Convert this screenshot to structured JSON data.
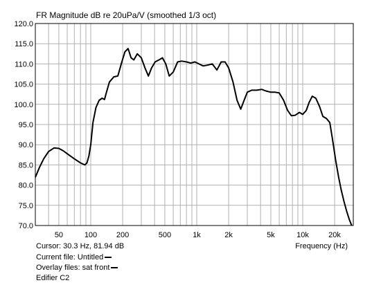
{
  "chart_data": {
    "type": "line",
    "title": "FR Magnitude dB re 20uPa/V (smoothed 1/3 oct)",
    "xlabel": "Frequency (Hz)",
    "ylabel": "",
    "x_scale": "log",
    "xlim": [
      30,
      30000
    ],
    "ylim": [
      70.0,
      120.0
    ],
    "grid": true,
    "y_ticks": [
      "120.0",
      "115.0",
      "110.0",
      "105.0",
      "100.0",
      "95.0",
      "90.0",
      "85.0",
      "80.0",
      "75.0",
      "70.0"
    ],
    "x_ticks": [
      {
        "value": 50,
        "label": "50"
      },
      {
        "value": 100,
        "label": "100"
      },
      {
        "value": 200,
        "label": "200"
      },
      {
        "value": 500,
        "label": "500"
      },
      {
        "value": 1000,
        "label": "1k"
      },
      {
        "value": 2000,
        "label": "2k"
      },
      {
        "value": 5000,
        "label": "5k"
      },
      {
        "value": 10000,
        "label": "10k"
      },
      {
        "value": 20000,
        "label": "20k"
      }
    ],
    "series": [
      {
        "x": [
          30,
          33,
          36,
          40,
          45,
          50,
          55,
          62,
          70,
          80,
          88,
          92,
          96,
          100,
          105,
          112,
          120,
          128,
          135,
          140,
          150,
          165,
          180,
          195,
          210,
          225,
          240,
          255,
          275,
          300,
          325,
          350,
          375,
          405,
          440,
          475,
          510,
          550,
          600,
          660,
          720,
          800,
          880,
          960,
          1050,
          1150,
          1260,
          1400,
          1550,
          1700,
          1850,
          2000,
          2200,
          2400,
          2600,
          2800,
          3000,
          3300,
          3700,
          4100,
          4500,
          5000,
          5500,
          6000,
          6600,
          7200,
          7800,
          8500,
          9300,
          10000,
          10800,
          11500,
          12300,
          13300,
          14400,
          15500,
          16700,
          18000,
          19200,
          20500,
          21800,
          23000,
          24500,
          26000,
          27500,
          29000
        ],
        "y": [
          81.94,
          84.5,
          86.5,
          88.3,
          89.2,
          89.1,
          88.5,
          87.5,
          86.5,
          85.5,
          85.0,
          85.5,
          87.2,
          90.0,
          95.5,
          99.2,
          101.0,
          101.5,
          101.2,
          102.8,
          105.5,
          106.8,
          107.0,
          110.2,
          113.0,
          113.8,
          111.5,
          111.0,
          112.5,
          111.5,
          109.0,
          107.0,
          109.0,
          110.5,
          111.0,
          111.5,
          110.0,
          107.0,
          108.0,
          110.5,
          110.7,
          110.5,
          110.2,
          110.5,
          110.0,
          109.5,
          109.7,
          110.0,
          108.5,
          110.5,
          110.5,
          109.0,
          105.5,
          101.0,
          98.8,
          101.0,
          103.0,
          103.5,
          103.5,
          103.7,
          103.3,
          103.0,
          103.0,
          102.8,
          101.0,
          98.5,
          97.2,
          97.3,
          98.0,
          97.5,
          98.5,
          100.5,
          102.0,
          101.5,
          99.5,
          97.0,
          96.5,
          95.5,
          91.0,
          86.0,
          82.0,
          79.0,
          76.0,
          73.5,
          71.5,
          70.0
        ]
      }
    ]
  },
  "cursor_text": "Cursor: 30.3 Hz, 81.94 dB",
  "current_file": "Current file: Untitled",
  "overlay_files": "Overlay files: sat front",
  "caption": "Edifier C2",
  "colors": {
    "curve": "#000000",
    "grid": "#b0b0b0",
    "background": "#ffffff"
  }
}
